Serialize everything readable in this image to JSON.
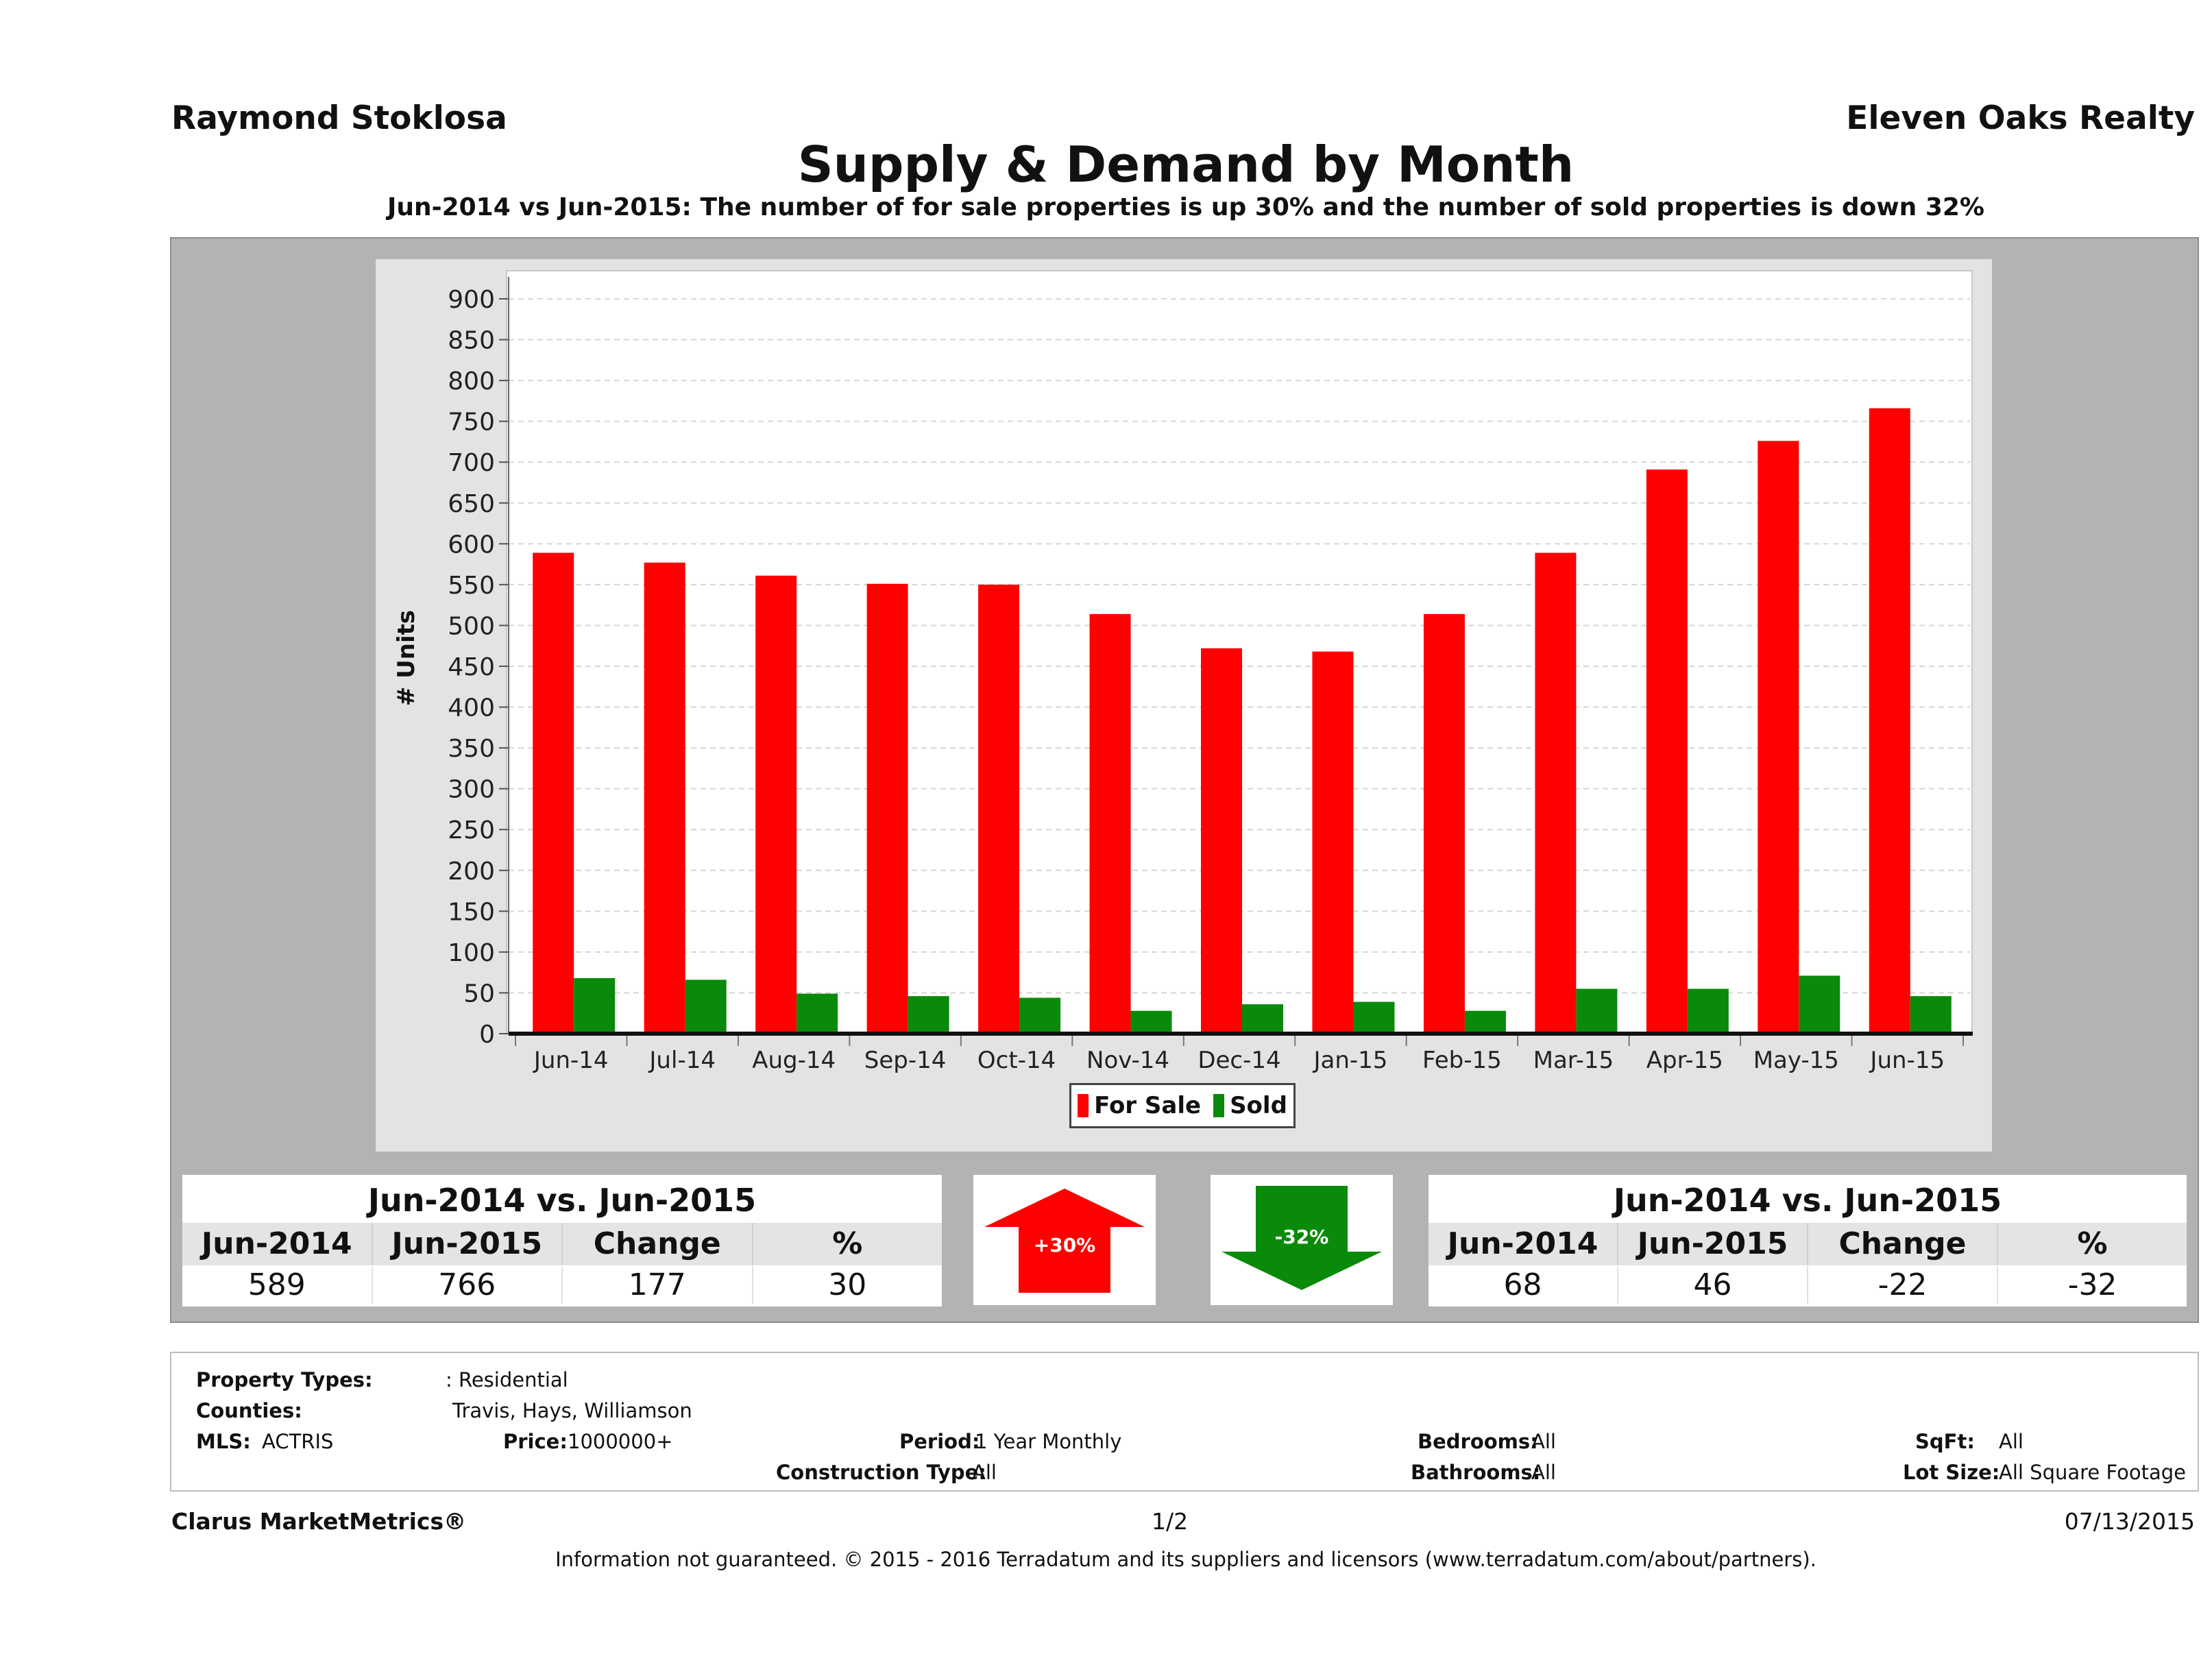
{
  "header": {
    "agent": "Raymond Stoklosa",
    "broker": "Eleven Oaks Realty",
    "title": "Supply & Demand by Month",
    "subtitle": "Jun-2014 vs Jun-2015: The number of for sale properties is up 30% and the number of sold properties is down 32%"
  },
  "chart_data": {
    "type": "bar",
    "ylabel": "# Units",
    "xlabel": "",
    "ylim": [
      0,
      900
    ],
    "yticks": [
      0,
      50,
      100,
      150,
      200,
      250,
      300,
      350,
      400,
      450,
      500,
      550,
      600,
      650,
      700,
      750,
      800,
      850,
      900
    ],
    "grid": true,
    "legend_position": "bottom",
    "categories": [
      "Jun-14",
      "Jul-14",
      "Aug-14",
      "Sep-14",
      "Oct-14",
      "Nov-14",
      "Dec-14",
      "Jan-15",
      "Feb-15",
      "Mar-15",
      "Apr-15",
      "May-15",
      "Jun-15"
    ],
    "series": [
      {
        "name": "For Sale",
        "color": "#ff0000",
        "values": [
          589,
          577,
          561,
          551,
          550,
          514,
          472,
          468,
          514,
          589,
          691,
          726,
          766
        ]
      },
      {
        "name": "Sold",
        "color": "#0a8a0a",
        "values": [
          68,
          66,
          49,
          46,
          44,
          28,
          36,
          39,
          28,
          55,
          55,
          71,
          46
        ]
      }
    ]
  },
  "for_sale_stats": {
    "title": "Jun-2014 vs. Jun-2015",
    "headers": [
      "Jun-2014",
      "Jun-2015",
      "Change",
      "%"
    ],
    "values": [
      "589",
      "766",
      "177",
      "30"
    ]
  },
  "sold_stats": {
    "title": "Jun-2014 vs. Jun-2015",
    "headers": [
      "Jun-2014",
      "Jun-2015",
      "Change",
      "%"
    ],
    "values": [
      "68",
      "46",
      "-22",
      "-32"
    ]
  },
  "arrows": {
    "up": {
      "label": "+30%",
      "color": "#ff0000"
    },
    "down": {
      "label": "-32%",
      "color": "#0a8a0a"
    }
  },
  "filters": {
    "property_types_label": "Property Types:",
    "property_types": ": Residential",
    "counties_label": "Counties:",
    "counties": "Travis, Hays, Williamson",
    "mls_label": "MLS:",
    "mls": "ACTRIS",
    "price_label": "Price:",
    "price": "1000000+",
    "period_label": "Period:",
    "period": "1 Year Monthly",
    "construction_label": "Construction Type:",
    "construction": "All",
    "bedrooms_label": "Bedrooms:",
    "bedrooms": "All",
    "bathrooms_label": "Bathrooms:",
    "bathrooms": "All",
    "sqft_label": "SqFt:",
    "sqft": "All",
    "lot_label": "Lot Size:",
    "lot": "All Square Footage"
  },
  "footer": {
    "brand": "Clarus MarketMetrics®",
    "page": "1/2",
    "date": "07/13/2015",
    "disclaimer": "Information not guaranteed. © 2015 - 2016 Terradatum and its suppliers and licensors (www.terradatum.com/about/partners)."
  }
}
